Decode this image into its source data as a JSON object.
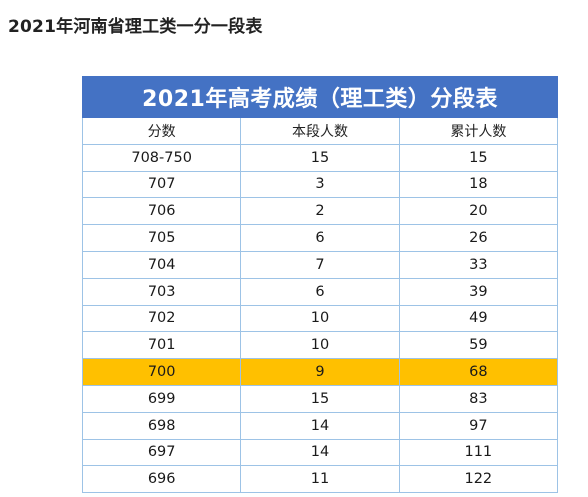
{
  "page_heading": "2021年河南省理工类一分一段表",
  "table": {
    "title": "2021年高考成绩（理工类）分段表",
    "headers": [
      "分数",
      "本段人数",
      "累计人数"
    ],
    "highlight_color": "#ffc000",
    "title_bg_color": "#4472c4",
    "rows": [
      {
        "score": "708-750",
        "count": "15",
        "cumulative": "15",
        "highlight": false
      },
      {
        "score": "707",
        "count": "3",
        "cumulative": "18",
        "highlight": false
      },
      {
        "score": "706",
        "count": "2",
        "cumulative": "20",
        "highlight": false
      },
      {
        "score": "705",
        "count": "6",
        "cumulative": "26",
        "highlight": false
      },
      {
        "score": "704",
        "count": "7",
        "cumulative": "33",
        "highlight": false
      },
      {
        "score": "703",
        "count": "6",
        "cumulative": "39",
        "highlight": false
      },
      {
        "score": "702",
        "count": "10",
        "cumulative": "49",
        "highlight": false
      },
      {
        "score": "701",
        "count": "10",
        "cumulative": "59",
        "highlight": false
      },
      {
        "score": "700",
        "count": "9",
        "cumulative": "68",
        "highlight": true
      },
      {
        "score": "699",
        "count": "15",
        "cumulative": "83",
        "highlight": false
      },
      {
        "score": "698",
        "count": "14",
        "cumulative": "97",
        "highlight": false
      },
      {
        "score": "697",
        "count": "14",
        "cumulative": "111",
        "highlight": false
      },
      {
        "score": "696",
        "count": "11",
        "cumulative": "122",
        "highlight": false
      }
    ]
  }
}
